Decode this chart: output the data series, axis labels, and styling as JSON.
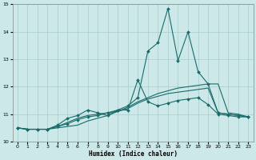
{
  "xlabel": "Humidex (Indice chaleur)",
  "xlim": [
    -0.5,
    23.5
  ],
  "ylim": [
    10,
    15
  ],
  "yticks": [
    10,
    11,
    12,
    13,
    14,
    15
  ],
  "xtick_labels": [
    "0",
    "1",
    "2",
    "3",
    "4",
    "5",
    "6",
    "7",
    "8",
    "9",
    "10",
    "11",
    "12",
    "13",
    "14",
    "15",
    "16",
    "17",
    "18",
    "19",
    "20",
    "21",
    "22",
    "23"
  ],
  "bg_color": "#cce8e8",
  "grid_color": "#aacaca",
  "line_color": "#1a6b6b",
  "series": [
    [
      10.5,
      10.45,
      10.45,
      10.45,
      10.5,
      10.55,
      10.6,
      10.75,
      10.85,
      10.95,
      11.1,
      11.25,
      11.45,
      11.6,
      11.75,
      11.85,
      11.95,
      12.0,
      12.05,
      12.1,
      12.1,
      11.05,
      11.0,
      10.9
    ],
    [
      10.5,
      10.45,
      10.45,
      10.45,
      10.55,
      10.65,
      10.8,
      10.9,
      10.95,
      11.05,
      11.15,
      11.3,
      11.6,
      13.3,
      13.6,
      14.85,
      12.95,
      14.0,
      12.55,
      12.1,
      11.05,
      11.0,
      10.95,
      10.9
    ],
    [
      10.5,
      10.45,
      10.45,
      10.45,
      10.6,
      10.85,
      10.95,
      11.15,
      11.05,
      10.95,
      11.15,
      11.15,
      12.25,
      11.45,
      11.3,
      11.4,
      11.5,
      11.55,
      11.6,
      11.35,
      11.0,
      10.95,
      10.9,
      10.9
    ],
    [
      10.5,
      10.45,
      10.45,
      10.45,
      10.55,
      10.7,
      10.85,
      10.95,
      11.0,
      11.05,
      11.1,
      11.2,
      11.4,
      11.55,
      11.65,
      11.75,
      11.8,
      11.85,
      11.9,
      11.95,
      11.05,
      11.0,
      10.95,
      10.9
    ]
  ],
  "markers_on": [
    1,
    2
  ],
  "marker": "D",
  "markersize": 2.0,
  "linewidth": 0.8,
  "tick_fontsize": 4.5,
  "xlabel_fontsize": 5.5
}
